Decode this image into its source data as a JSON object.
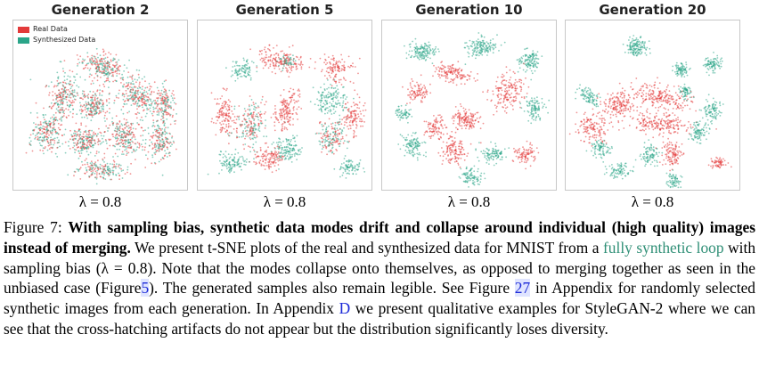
{
  "figure": {
    "panels": [
      {
        "title": "Generation 2",
        "lambda": "λ = 0.8"
      },
      {
        "title": "Generation 5",
        "lambda": "λ = 0.8"
      },
      {
        "title": "Generation 10",
        "lambda": "λ = 0.8"
      },
      {
        "title": "Generation 20",
        "lambda": "λ = 0.8"
      }
    ],
    "legend": {
      "real": "Real Data",
      "synth": "Synthesized Data"
    },
    "colors": {
      "real": "#e33a3a",
      "synth": "#2ba589"
    }
  },
  "caption": {
    "label": "Figure 7:",
    "bold": "With sampling bias, synthetic data modes drift and collapse around individual (high quality) images instead of merging.",
    "t1": "We present t-SNE plots of the real and synthesized data for MNIST from a",
    "cite": "fully synthetic loop",
    "t2": "with sampling bias (λ = 0.8). Note that the modes collapse onto themselves, as opposed to merging together as seen in the unbiased case (Figure",
    "ref1": "5",
    "t3": "). The generated samples also remain legible. See Figure",
    "ref2": "27",
    "t4": "in Appendix for randomly selected synthetic images from each generation. In Appendix",
    "ref3": "D",
    "t5": "we present qualitative examples for StyleGAN-2 where we can see that the cross-hatching artifacts do not appear but the distribution significantly loses diversity."
  }
}
